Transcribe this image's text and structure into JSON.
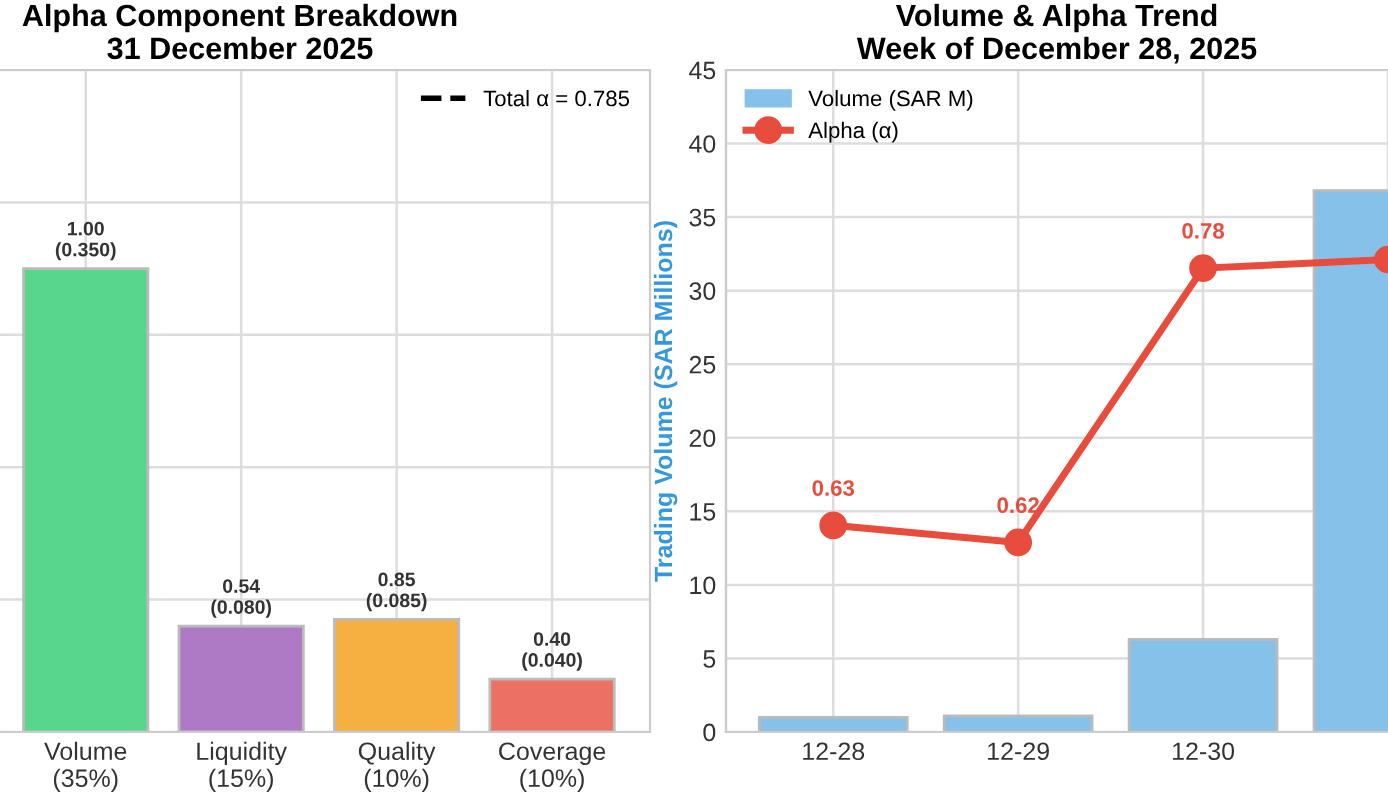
{
  "chart_data": [
    {
      "type": "bar",
      "title": "Alpha Component Breakdown\n31 December 2025",
      "categories": [
        "Volume\n(35%)",
        "Liquidity\n(15%)",
        "Quality\n(10%)",
        "Coverage\n(10%)"
      ],
      "values": [
        0.35,
        0.08,
        0.085,
        0.04
      ],
      "value_labels": [
        "1.00\n(0.350)",
        "0.54\n(0.080)",
        "0.85\n(0.085)",
        "0.40\n(0.040)"
      ],
      "colors": [
        "#58d68d",
        "#af7ac5",
        "#f5b041",
        "#ec7063"
      ],
      "ylim": [
        0,
        0.5
      ],
      "yticks": [
        {
          "value": 0,
          "label": null
        },
        {
          "value": 0.1,
          "label": null
        },
        {
          "value": 0.2,
          "label": null
        },
        {
          "value": 0.3,
          "label": null
        },
        {
          "value": 0.4,
          "label": null
        },
        {
          "value": 0.5,
          "label": null
        }
      ],
      "tick_labels": "x",
      "grid": true,
      "annotations": [
        "Total α = 0.785"
      ]
    },
    {
      "type": "bar",
      "title": "Volume & Alpha Trend\nWeek of December 28, 2025",
      "categories": [
        "12-28",
        "12-29",
        "12-30",
        null
      ],
      "ylabel": "Trading Volume (SAR Millions)",
      "series": [
        {
          "name": "Volume (SAR M)",
          "type": "bar",
          "color": "#85c1e9",
          "values": [
            1.0,
            1.1,
            6.3,
            36.8
          ]
        },
        {
          "name": "Alpha (α)",
          "type": "line",
          "axis": "y2",
          "color": "#e74c3c",
          "marker": "circle",
          "values": [
            0.63,
            0.62,
            0.78,
            0.785
          ],
          "value_labels": [
            "0.63",
            "0.62",
            "0.78",
            null
          ]
        }
      ],
      "ylim": [
        0,
        45
      ],
      "yticks": [
        0,
        5,
        10,
        15,
        20,
        25,
        30,
        35,
        40,
        45
      ],
      "grid": true,
      "legend": "top left"
    }
  ]
}
